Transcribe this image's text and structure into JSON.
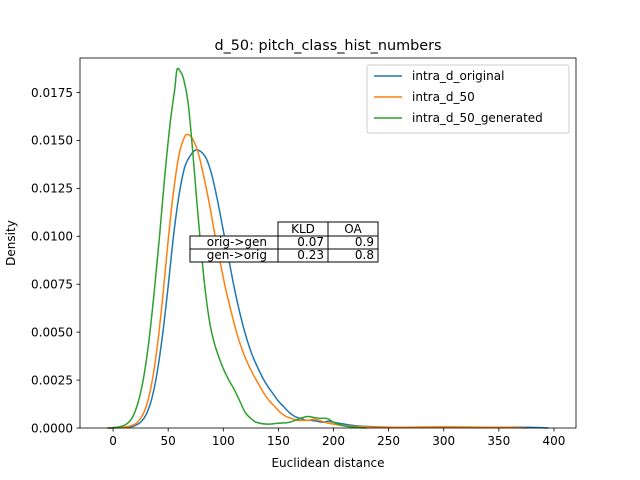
{
  "chart_data": {
    "type": "line",
    "title": "d_50: pitch_class_hist_numbers",
    "xlabel": "Euclidean distance",
    "ylabel": "Density",
    "xlim": [
      -30,
      420
    ],
    "ylim": [
      0,
      0.0193
    ],
    "xticks": [
      0,
      50,
      100,
      150,
      200,
      250,
      300,
      350,
      400
    ],
    "xtick_labels": [
      "0",
      "50",
      "100",
      "150",
      "200",
      "250",
      "300",
      "350",
      "400"
    ],
    "yticks": [
      0,
      0.0025,
      0.005,
      0.0075,
      0.01,
      0.0125,
      0.015,
      0.0175
    ],
    "ytick_labels": [
      "0.0000",
      "0.0025",
      "0.0050",
      "0.0075",
      "0.0100",
      "0.0125",
      "0.0150",
      "0.0175"
    ],
    "grid": false,
    "legend_position": "top-right",
    "series": [
      {
        "name": "intra_d_original",
        "color": "#1f77b4",
        "points": [
          [
            -5,
            0
          ],
          [
            5,
            1e-05
          ],
          [
            15,
            5e-05
          ],
          [
            20,
            0.00013
          ],
          [
            25,
            0.0003
          ],
          [
            30,
            0.0007
          ],
          [
            35,
            0.0015
          ],
          [
            40,
            0.0029
          ],
          [
            45,
            0.0049
          ],
          [
            50,
            0.0074
          ],
          [
            55,
            0.0101
          ],
          [
            60,
            0.0122
          ],
          [
            65,
            0.0136
          ],
          [
            70,
            0.0142
          ],
          [
            75,
            0.0145
          ],
          [
            80,
            0.0144
          ],
          [
            85,
            0.014
          ],
          [
            90,
            0.0131
          ],
          [
            95,
            0.0118
          ],
          [
            100,
            0.0103
          ],
          [
            105,
            0.0088
          ],
          [
            110,
            0.0073
          ],
          [
            115,
            0.006
          ],
          [
            120,
            0.0049
          ],
          [
            125,
            0.004
          ],
          [
            130,
            0.0033
          ],
          [
            135,
            0.0027
          ],
          [
            140,
            0.0022
          ],
          [
            145,
            0.0018
          ],
          [
            150,
            0.0014
          ],
          [
            155,
            0.0011
          ],
          [
            160,
            0.0008
          ],
          [
            165,
            0.0006
          ],
          [
            170,
            0.0005
          ],
          [
            175,
            0.0004
          ],
          [
            180,
            0.0004
          ],
          [
            185,
            0.00035
          ],
          [
            190,
            0.0003
          ],
          [
            195,
            0.00035
          ],
          [
            200,
            0.0003
          ],
          [
            210,
            0.0002
          ],
          [
            220,
            0.00012
          ],
          [
            240,
            6e-05
          ],
          [
            260,
            4e-05
          ],
          [
            280,
            4e-05
          ],
          [
            300,
            5e-05
          ],
          [
            320,
            4e-05
          ],
          [
            340,
            3e-05
          ],
          [
            360,
            4e-05
          ],
          [
            380,
            3e-05
          ],
          [
            395,
            0
          ]
        ]
      },
      {
        "name": "intra_d_50",
        "color": "#ff7f0e",
        "points": [
          [
            -5,
            0
          ],
          [
            5,
            2e-05
          ],
          [
            15,
            0.0001
          ],
          [
            20,
            0.0002
          ],
          [
            25,
            0.0005
          ],
          [
            30,
            0.0011
          ],
          [
            35,
            0.0023
          ],
          [
            40,
            0.0042
          ],
          [
            45,
            0.0068
          ],
          [
            50,
            0.0098
          ],
          [
            55,
            0.0124
          ],
          [
            60,
            0.0143
          ],
          [
            65,
            0.0152
          ],
          [
            68,
            0.0153
          ],
          [
            72,
            0.0151
          ],
          [
            77,
            0.0144
          ],
          [
            82,
            0.0132
          ],
          [
            87,
            0.0118
          ],
          [
            92,
            0.0102
          ],
          [
            97,
            0.0087
          ],
          [
            102,
            0.0073
          ],
          [
            107,
            0.0061
          ],
          [
            112,
            0.005
          ],
          [
            117,
            0.0041
          ],
          [
            122,
            0.0034
          ],
          [
            127,
            0.0028
          ],
          [
            132,
            0.0023
          ],
          [
            137,
            0.0018
          ],
          [
            142,
            0.0014
          ],
          [
            147,
            0.0011
          ],
          [
            152,
            0.0008
          ],
          [
            157,
            0.0006
          ],
          [
            162,
            0.0005
          ],
          [
            167,
            0.0004
          ],
          [
            172,
            0.0004
          ],
          [
            177,
            0.0004
          ],
          [
            182,
            0.00045
          ],
          [
            187,
            0.0004
          ],
          [
            192,
            0.0003
          ],
          [
            200,
            0.0002
          ],
          [
            210,
            0.00012
          ],
          [
            220,
            8e-05
          ],
          [
            240,
            5e-05
          ],
          [
            260,
            4e-05
          ],
          [
            280,
            5e-05
          ],
          [
            300,
            6e-05
          ],
          [
            320,
            5e-05
          ],
          [
            340,
            4e-05
          ],
          [
            360,
            3e-05
          ],
          [
            375,
            0
          ]
        ]
      },
      {
        "name": "intra_d_50_generated",
        "color": "#2ca02c",
        "points": [
          [
            -5,
            0
          ],
          [
            5,
            5e-05
          ],
          [
            12,
            0.0002
          ],
          [
            17,
            0.0005
          ],
          [
            22,
            0.0012
          ],
          [
            27,
            0.0024
          ],
          [
            32,
            0.0043
          ],
          [
            37,
            0.0069
          ],
          [
            42,
            0.0099
          ],
          [
            47,
            0.0132
          ],
          [
            52,
            0.016
          ],
          [
            56,
            0.0177
          ],
          [
            58,
            0.0187
          ],
          [
            61,
            0.0186
          ],
          [
            64,
            0.0182
          ],
          [
            68,
            0.017
          ],
          [
            72,
            0.0146
          ],
          [
            76,
            0.0118
          ],
          [
            80,
            0.0092
          ],
          [
            84,
            0.007
          ],
          [
            88,
            0.0054
          ],
          [
            92,
            0.0044
          ],
          [
            96,
            0.0037
          ],
          [
            100,
            0.0031
          ],
          [
            105,
            0.0025
          ],
          [
            110,
            0.002
          ],
          [
            115,
            0.0014
          ],
          [
            120,
            0.0008
          ],
          [
            125,
            0.0005
          ],
          [
            130,
            0.0003
          ],
          [
            140,
            0.0002
          ],
          [
            150,
            0.00025
          ],
          [
            160,
            0.0003
          ],
          [
            170,
            0.0005
          ],
          [
            176,
            0.0006
          ],
          [
            182,
            0.00055
          ],
          [
            188,
            0.0005
          ],
          [
            194,
            0.0005
          ],
          [
            200,
            0.0003
          ],
          [
            210,
            0.0001
          ],
          [
            220,
            4e-05
          ],
          [
            230,
            0
          ]
        ]
      }
    ],
    "annotation_table": {
      "col_headers": [
        "KLD",
        "OA"
      ],
      "rows": [
        {
          "label": "orig->gen",
          "values": [
            "0.07",
            "0.9"
          ]
        },
        {
          "label": "gen->orig",
          "values": [
            "0.23",
            "0.8"
          ]
        }
      ]
    }
  }
}
